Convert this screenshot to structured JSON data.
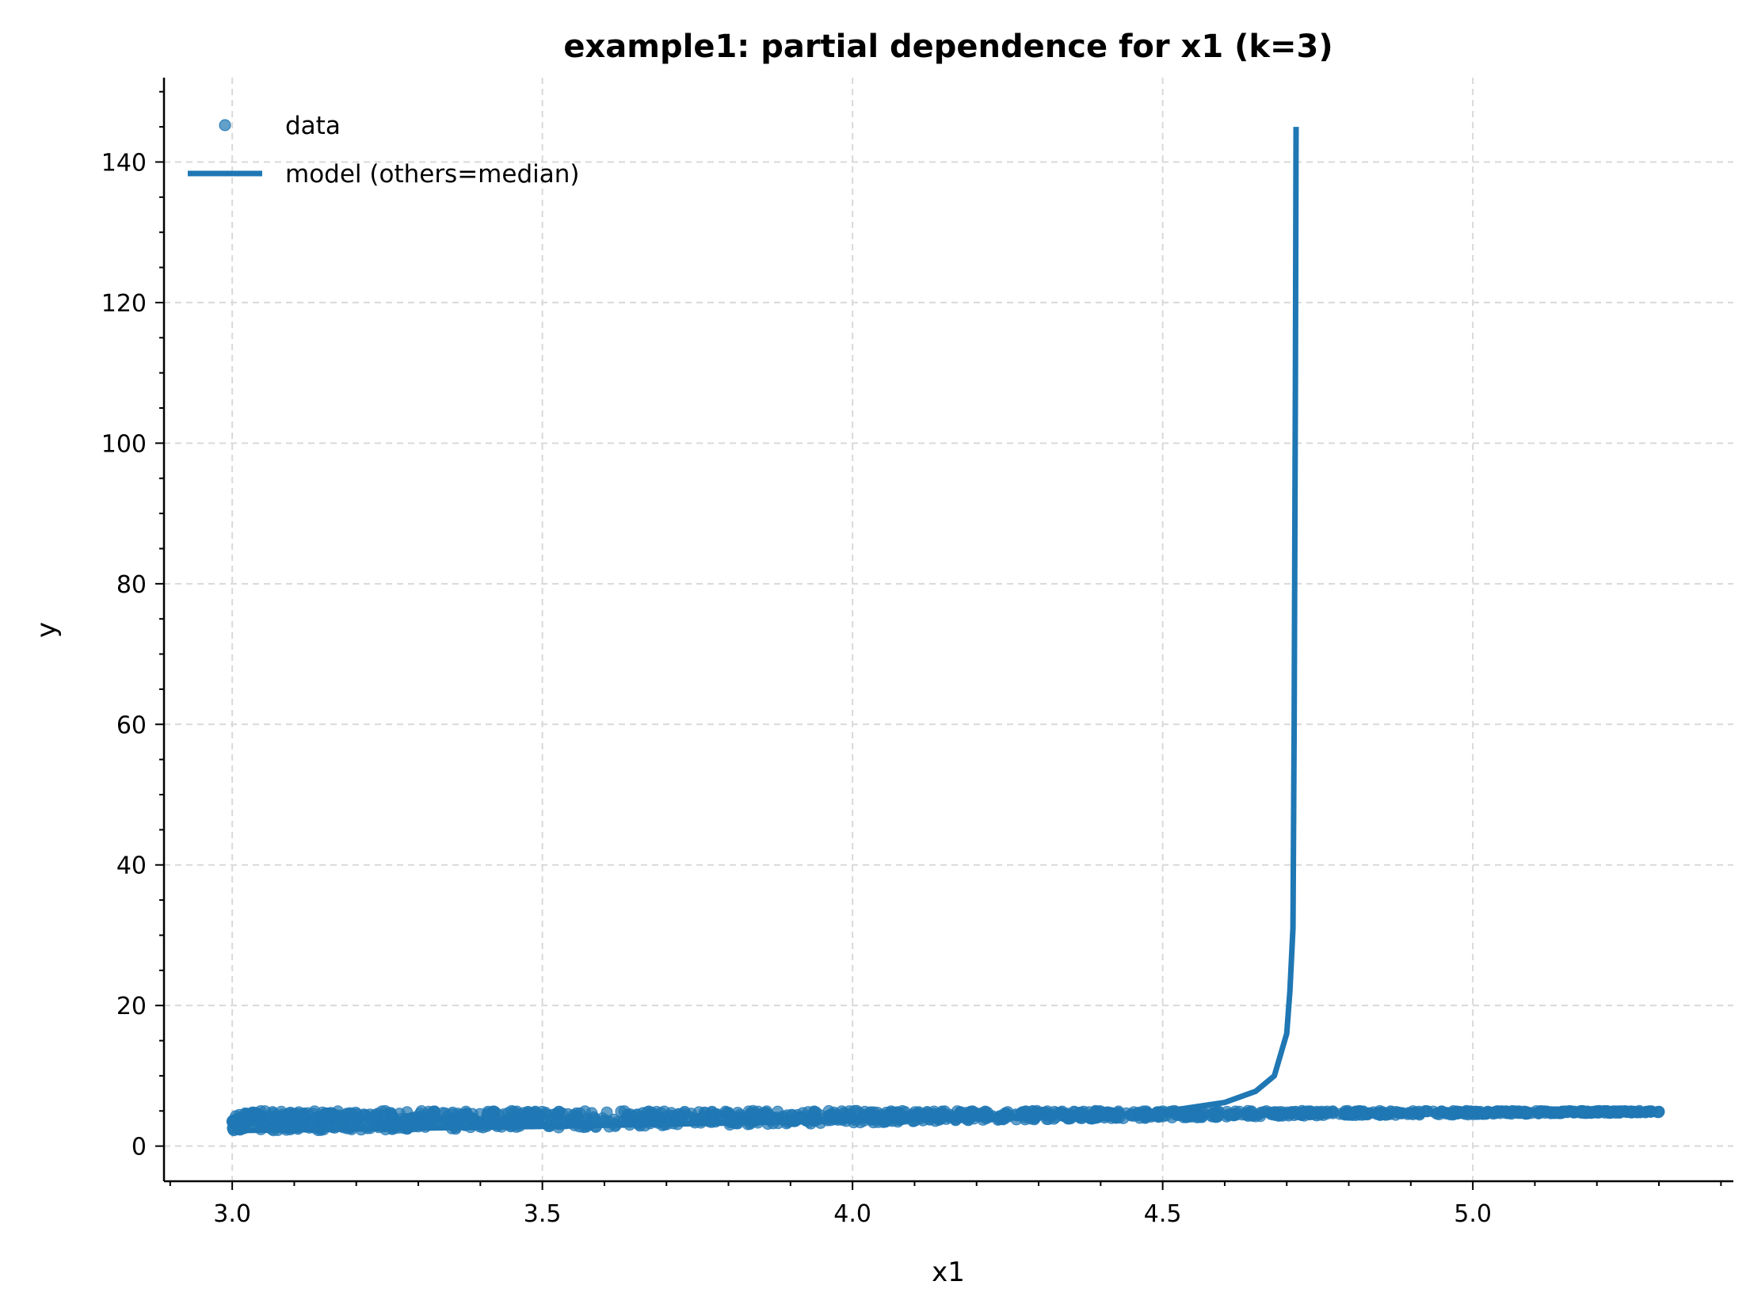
{
  "chart_data": {
    "type": "scatter",
    "title": "example1: partial dependence for x1 (k=3)",
    "xlabel": "x1",
    "ylabel": "y",
    "xlim": [
      2.89,
      5.42
    ],
    "ylim": [
      -5,
      152
    ],
    "x_ticks": [
      3.0,
      3.5,
      4.0,
      4.5,
      5.0
    ],
    "x_tick_labels": [
      "3.0",
      "3.5",
      "4.0",
      "4.5",
      "5.0"
    ],
    "y_ticks": [
      0,
      20,
      40,
      60,
      80,
      100,
      120,
      140
    ],
    "y_tick_labels": [
      "0",
      "20",
      "40",
      "60",
      "80",
      "100",
      "120",
      "140"
    ],
    "grid": true,
    "legend_position": "top-left",
    "colors": {
      "data": "#1f77b4",
      "model": "#1f77b4"
    },
    "series": [
      {
        "name": "data",
        "kind": "scatter",
        "band_x": [
          3.0,
          3.2,
          3.5,
          3.8,
          4.0,
          4.2,
          4.5,
          4.7,
          5.0,
          5.2,
          5.3
        ],
        "band_low": [
          2.2,
          2.3,
          2.6,
          3.0,
          3.3,
          3.7,
          4.0,
          4.3,
          4.5,
          4.7,
          4.8
        ],
        "band_high": [
          5.0,
          5.0,
          5.0,
          5.0,
          5.0,
          5.0,
          5.0,
          5.0,
          5.0,
          5.0,
          5.0
        ]
      },
      {
        "name": "model (others=median)",
        "kind": "line",
        "x": [
          3.0,
          3.25,
          3.5,
          3.75,
          4.0,
          4.25,
          4.4,
          4.5,
          4.6,
          4.65,
          4.68,
          4.7,
          4.705,
          4.71,
          4.712,
          4.714,
          4.715
        ],
        "y": [
          2.2,
          2.5,
          2.8,
          3.2,
          3.6,
          4.0,
          4.4,
          4.9,
          6.2,
          7.8,
          10.0,
          16.0,
          22.0,
          31.0,
          60.0,
          110.0,
          145.0
        ]
      }
    ]
  }
}
